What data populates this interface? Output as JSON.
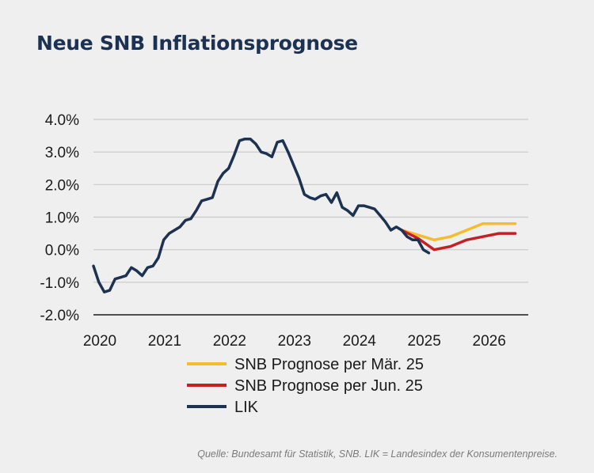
{
  "chart_data": {
    "type": "line",
    "title": "Neue SNB Inflationsprognose",
    "xlabel": "",
    "ylabel": "",
    "xlim": [
      2020,
      2026.7
    ],
    "ylim": [
      -2.0,
      4.0
    ],
    "x_ticks": [
      2020,
      2021,
      2022,
      2023,
      2024,
      2025,
      2026
    ],
    "x_tick_labels": [
      "2020",
      "2021",
      "2022",
      "2023",
      "2024",
      "2025",
      "2026"
    ],
    "y_ticks": [
      4,
      3,
      2,
      1,
      0,
      -1,
      -2
    ],
    "y_tick_labels": [
      "4.0%",
      "3.0%",
      "2.0%",
      "1.0%",
      "0.0%",
      "-1.0%",
      "-2.0%"
    ],
    "grid": true,
    "legend_position": "bottom",
    "series": [
      {
        "name": "SNB Prognose per Mär. 25",
        "color": "#f5bd2e",
        "x": [
          2024.75,
          2025.0,
          2025.25,
          2025.5,
          2025.75,
          2026.0,
          2026.25,
          2026.5
        ],
        "y": [
          0.6,
          0.45,
          0.3,
          0.4,
          0.6,
          0.8,
          0.8,
          0.8
        ]
      },
      {
        "name": "SNB Prognose per Jun. 25",
        "color": "#c42026",
        "x": [
          2024.75,
          2025.0,
          2025.25,
          2025.5,
          2025.75,
          2026.0,
          2026.25,
          2026.5
        ],
        "y": [
          0.6,
          0.35,
          0.0,
          0.1,
          0.3,
          0.4,
          0.5,
          0.5
        ]
      },
      {
        "name": "LIK",
        "color": "#1d3150",
        "x": [
          2020.0,
          2020.083,
          2020.167,
          2020.25,
          2020.333,
          2020.417,
          2020.5,
          2020.583,
          2020.667,
          2020.75,
          2020.833,
          2020.917,
          2021.0,
          2021.083,
          2021.167,
          2021.25,
          2021.333,
          2021.417,
          2021.5,
          2021.583,
          2021.667,
          2021.75,
          2021.833,
          2021.917,
          2022.0,
          2022.083,
          2022.167,
          2022.25,
          2022.333,
          2022.417,
          2022.5,
          2022.583,
          2022.667,
          2022.75,
          2022.833,
          2022.917,
          2023.0,
          2023.083,
          2023.167,
          2023.25,
          2023.333,
          2023.417,
          2023.5,
          2023.583,
          2023.667,
          2023.75,
          2023.833,
          2023.917,
          2024.0,
          2024.083,
          2024.167,
          2024.25,
          2024.333,
          2024.417,
          2024.5,
          2024.583,
          2024.667,
          2024.75,
          2024.833,
          2024.917,
          2025.0,
          2025.083,
          2025.167
        ],
        "y": [
          -0.5,
          -1.0,
          -1.3,
          -1.25,
          -0.9,
          -0.85,
          -0.8,
          -0.55,
          -0.65,
          -0.8,
          -0.55,
          -0.5,
          -0.25,
          0.3,
          0.5,
          0.6,
          0.7,
          0.9,
          0.95,
          1.2,
          1.5,
          1.55,
          1.6,
          2.1,
          2.35,
          2.5,
          2.9,
          3.35,
          3.4,
          3.4,
          3.25,
          3.0,
          2.95,
          2.85,
          3.3,
          3.35,
          3.0,
          2.6,
          2.2,
          1.7,
          1.6,
          1.55,
          1.65,
          1.7,
          1.45,
          1.75,
          1.3,
          1.2,
          1.05,
          1.35,
          1.35,
          1.3,
          1.25,
          1.05,
          0.85,
          0.6,
          0.7,
          0.6,
          0.4,
          0.3,
          0.3,
          0.0,
          -0.1
        ]
      }
    ],
    "source_note": "Quelle: Bundesamt für Statistik, SNB. LIK = Landesindex der Konsumentenpreise."
  }
}
